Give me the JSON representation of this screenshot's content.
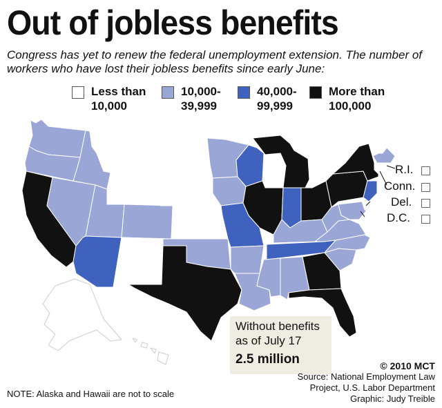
{
  "title": "Out of jobless benefits",
  "subtitle": "Congress has yet to renew the federal unemployment extension. The number of workers who have lost their jobless benefits since early June:",
  "legend": [
    {
      "label_line1": "Less than",
      "label_line2": "10,000",
      "color": "#ffffff"
    },
    {
      "label_line1": "10,000-",
      "label_line2": "39,999",
      "color": "#9aa6d6"
    },
    {
      "label_line1": "40,000-",
      "label_line2": "99,999",
      "color": "#3f62bf"
    },
    {
      "label_line1": "More than",
      "label_line2": "100,000",
      "color": "#111111"
    }
  ],
  "small_states": {
    "ri": "R.I.",
    "conn": "Conn.",
    "del": "Del.",
    "dc": "D.C."
  },
  "callout": {
    "line1": "Without benefits",
    "line2": "as of July 17",
    "total": "2.5 million"
  },
  "credit": {
    "copyright": "© 2010 MCT",
    "source_line1": "Source: National Employment Law",
    "source_line2": "Project, U.S. Labor Department",
    "graphic": "Graphic: Judy Treible"
  },
  "note": "NOTE: Alaska and Hawaii are not to scale",
  "state_categories": {
    "WA": "tier2",
    "OR": "tier2",
    "CA": "tier4",
    "NV": "tier2",
    "ID": "tier2",
    "MT": "tier1",
    "WY": "tier1",
    "UT": "tier2",
    "AZ": "tier3",
    "CO": "tier2",
    "NM": "tier1",
    "ND": "tier1",
    "SD": "tier1",
    "NE": "tier1",
    "KS": "tier1",
    "OK": "tier2",
    "TX": "tier4",
    "MN": "tier2",
    "IA": "tier2",
    "MO": "tier3",
    "AR": "tier2",
    "LA": "tier2",
    "WI": "tier3",
    "IL": "tier4",
    "MI": "tier4",
    "IN": "tier3",
    "OH": "tier4",
    "KY": "tier2",
    "TN": "tier3",
    "MS": "tier2",
    "AL": "tier2",
    "GA": "tier4",
    "FL": "tier4",
    "SC": "tier2",
    "NC": "tier2",
    "VA": "tier2",
    "WV": "tier2",
    "PA": "tier4",
    "NY": "tier4",
    "NJ": "tier3",
    "VT": "tier1",
    "NH": "tier1",
    "ME": "tier1",
    "MA": "tier2",
    "RI": "tier1",
    "CT": "tier1",
    "DE": "tier1",
    "MD": "tier2",
    "AK": "tier1",
    "HI": "tier1"
  },
  "tier_colors": {
    "tier1": "#ffffff",
    "tier2": "#9aa6d6",
    "tier3": "#3f62bf",
    "tier4": "#111111"
  }
}
